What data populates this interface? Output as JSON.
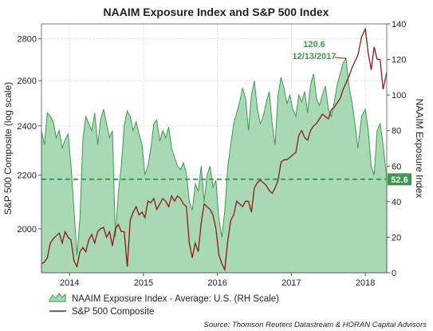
{
  "chart_data": {
    "type": "area+line",
    "title": "NAAIM Exposure Index and S&P 500 Index",
    "left_axis": {
      "label": "S&P 500 Composite (log scale)",
      "ticks": [
        2000,
        2200,
        2400,
        2600,
        2800
      ],
      "tick_labels": [
        "2000",
        "2200",
        "2400",
        "2600",
        "2800"
      ],
      "range": [
        1850,
        2875
      ],
      "scale": "log"
    },
    "right_axis": {
      "label": "NAAIM Exposure Index",
      "ticks": [
        0,
        20,
        40,
        60,
        80,
        100,
        120,
        140
      ],
      "tick_labels": [
        "0",
        "20",
        "40",
        "60",
        "80",
        "100",
        "120",
        "140"
      ],
      "range": [
        0,
        140
      ]
    },
    "x_axis": {
      "range": [
        2013.62,
        2018.29
      ],
      "ticks": [
        2014,
        2015,
        2016,
        2017,
        2018
      ],
      "tick_labels": [
        "2014",
        "2015",
        "2016",
        "2017",
        "2018"
      ]
    },
    "grid": true,
    "series": [
      {
        "name": "NAAIM Exposure Index - Average: U.S. (RH Scale)",
        "type": "area",
        "axis": "right",
        "color": "#3a9a4c",
        "fill": "#a9d9b4",
        "x": [
          2013.62,
          2013.66,
          2013.7,
          2013.74,
          2013.78,
          2013.82,
          2013.86,
          2013.9,
          2013.94,
          2013.98,
          2014.02,
          2014.06,
          2014.1,
          2014.14,
          2014.18,
          2014.22,
          2014.26,
          2014.3,
          2014.34,
          2014.38,
          2014.42,
          2014.46,
          2014.5,
          2014.54,
          2014.58,
          2014.62,
          2014.66,
          2014.7,
          2014.74,
          2014.78,
          2014.82,
          2014.86,
          2014.9,
          2014.94,
          2014.98,
          2015.02,
          2015.06,
          2015.1,
          2015.14,
          2015.18,
          2015.22,
          2015.26,
          2015.3,
          2015.34,
          2015.38,
          2015.42,
          2015.46,
          2015.5,
          2015.54,
          2015.58,
          2015.62,
          2015.66,
          2015.7,
          2015.74,
          2015.78,
          2015.82,
          2015.86,
          2015.9,
          2015.94,
          2015.98,
          2016.02,
          2016.06,
          2016.1,
          2016.14,
          2016.18,
          2016.22,
          2016.26,
          2016.3,
          2016.34,
          2016.38,
          2016.42,
          2016.46,
          2016.5,
          2016.54,
          2016.58,
          2016.62,
          2016.66,
          2016.7,
          2016.74,
          2016.78,
          2016.82,
          2016.86,
          2016.9,
          2016.94,
          2016.98,
          2017.02,
          2017.06,
          2017.1,
          2017.14,
          2017.18,
          2017.22,
          2017.26,
          2017.3,
          2017.34,
          2017.38,
          2017.42,
          2017.46,
          2017.5,
          2017.54,
          2017.58,
          2017.62,
          2017.66,
          2017.7,
          2017.74,
          2017.78,
          2017.82,
          2017.86,
          2017.9,
          2017.95,
          2018.0,
          2018.04,
          2018.08,
          2018.12,
          2018.16,
          2018.2,
          2018.24,
          2018.29
        ],
        "values": [
          80,
          72,
          90,
          88,
          85,
          76,
          80,
          70,
          75,
          78,
          60,
          35,
          10,
          30,
          75,
          88,
          84,
          80,
          90,
          72,
          86,
          92,
          84,
          76,
          80,
          20,
          45,
          60,
          83,
          91,
          88,
          80,
          85,
          78,
          72,
          55,
          60,
          70,
          84,
          86,
          74,
          80,
          76,
          82,
          70,
          65,
          60,
          58,
          62,
          56,
          40,
          35,
          50,
          46,
          60,
          40,
          55,
          60,
          48,
          52,
          30,
          20,
          35,
          60,
          72,
          84,
          90,
          96,
          104,
          98,
          80,
          100,
          108,
          92,
          84,
          88,
          96,
          102,
          84,
          72,
          100,
          110,
          104,
          95,
          100,
          92,
          88,
          100,
          96,
          102,
          90,
          106,
          112,
          98,
          94,
          100,
          105,
          92,
          88,
          96,
          106,
          112,
          118,
          120.6,
          105,
          96,
          84,
          70,
          88,
          92,
          80,
          60,
          55,
          80,
          84,
          72,
          52.6
        ]
      },
      {
        "name": "S&P 500 Composite",
        "type": "line",
        "axis": "left",
        "color": "#8b1a1a",
        "x": [
          2013.62,
          2013.66,
          2013.7,
          2013.74,
          2013.78,
          2013.82,
          2013.86,
          2013.9,
          2013.94,
          2013.98,
          2014.02,
          2014.06,
          2014.1,
          2014.14,
          2014.18,
          2014.22,
          2014.26,
          2014.3,
          2014.34,
          2014.38,
          2014.42,
          2014.46,
          2014.5,
          2014.54,
          2014.58,
          2014.62,
          2014.66,
          2014.7,
          2014.74,
          2014.78,
          2014.82,
          2014.86,
          2014.9,
          2014.94,
          2014.98,
          2015.02,
          2015.06,
          2015.1,
          2015.14,
          2015.18,
          2015.22,
          2015.26,
          2015.3,
          2015.34,
          2015.38,
          2015.42,
          2015.46,
          2015.5,
          2015.54,
          2015.58,
          2015.62,
          2015.66,
          2015.7,
          2015.74,
          2015.78,
          2015.82,
          2015.86,
          2015.9,
          2015.94,
          2015.98,
          2016.02,
          2016.06,
          2016.1,
          2016.14,
          2016.18,
          2016.22,
          2016.26,
          2016.3,
          2016.34,
          2016.38,
          2016.42,
          2016.46,
          2016.5,
          2016.54,
          2016.58,
          2016.62,
          2016.66,
          2016.7,
          2016.74,
          2016.78,
          2016.82,
          2016.86,
          2016.9,
          2016.94,
          2016.98,
          2017.02,
          2017.06,
          2017.1,
          2017.14,
          2017.18,
          2017.22,
          2017.26,
          2017.3,
          2017.34,
          2017.38,
          2017.42,
          2017.46,
          2017.5,
          2017.54,
          2017.58,
          2017.62,
          2017.66,
          2017.7,
          2017.74,
          2017.78,
          2017.82,
          2017.86,
          2017.9,
          2017.95,
          2018.0,
          2018.04,
          2018.08,
          2018.12,
          2018.16,
          2018.2,
          2018.24,
          2018.29
        ],
        "values": [
          1880,
          1885,
          1900,
          1950,
          1965,
          1975,
          1985,
          1950,
          1990,
          1970,
          1960,
          1890,
          1870,
          1920,
          1935,
          1920,
          1960,
          1980,
          1950,
          1990,
          2000,
          2005,
          1970,
          1990,
          1940,
          2000,
          2015,
          1990,
          1990,
          1870,
          2030,
          2060,
          2080,
          2050,
          2060,
          2040,
          2100,
          2095,
          2110,
          2070,
          2090,
          2110,
          2100,
          2080,
          2120,
          2100,
          2120,
          2110,
          2090,
          2080,
          1950,
          1900,
          1950,
          1920,
          2020,
          2090,
          2080,
          2070,
          2050,
          2000,
          1910,
          1880,
          1860,
          1960,
          2030,
          2050,
          2100,
          2090,
          2080,
          2100,
          2100,
          2060,
          2150,
          2170,
          2180,
          2170,
          2160,
          2140,
          2130,
          2150,
          2180,
          2250,
          2260,
          2260,
          2270,
          2280,
          2290,
          2360,
          2380,
          2350,
          2340,
          2380,
          2400,
          2410,
          2430,
          2450,
          2440,
          2430,
          2470,
          2480,
          2500,
          2520,
          2560,
          2590,
          2620,
          2660,
          2690,
          2720,
          2810,
          2850,
          2730,
          2650,
          2760,
          2700,
          2700,
          2560,
          2640
        ]
      }
    ],
    "dashed_line": {
      "axis": "right",
      "value": 52.6,
      "color": "#3a9a4c"
    },
    "last_value_label": "52.6",
    "annotation": {
      "value": "120.6",
      "date": "12/13/2017"
    },
    "legend": {
      "placement": "bottom-left",
      "items": [
        "NAAIM Exposure Index - Average: U.S. (RH Scale)",
        "S&P 500 Composite"
      ]
    },
    "source": "Source: Thomson Reuters Datastream & HORAN Capital Advisors"
  }
}
